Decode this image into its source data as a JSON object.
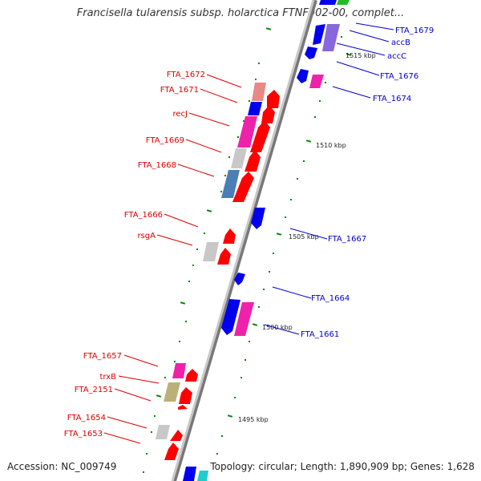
{
  "title": "Francisella tularensis subsp. holarctica FTNF002-00, complet...",
  "accession": "Accession: NC_009749",
  "summary": "Topology: circular; Length: 1,890,909 bp; Genes: 1,628",
  "scale_labels": [
    "1515 kbp",
    "1510 kbp",
    "1505 kbp",
    "1500 kbp",
    "1495 kbp"
  ],
  "left_labels": [
    "FTA_1672",
    "FTA_1671",
    "recJ",
    "FTA_1669",
    "FTA_1668",
    "FTA_1666",
    "rsgA",
    "FTA_1657",
    "trxB",
    "FTA_2151",
    "FTA_1654",
    "FTA_1653"
  ],
  "right_labels": [
    "FTA_1679",
    "accB",
    "accC",
    "FTA_1676",
    "FTA_1674",
    "FTA_1667",
    "FTA_1664",
    "FTA_1661"
  ],
  "colors": {
    "left_label": "#dd0000",
    "right_label": "#0000cc",
    "forward_cds": "#ff0000",
    "reverse_cds": "#0000ee",
    "backbone": "#999999",
    "tick": "#008800"
  }
}
